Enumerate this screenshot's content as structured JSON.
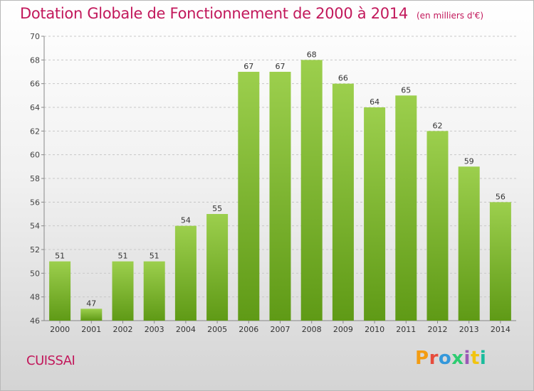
{
  "header": {
    "title": "Dotation Globale de Fonctionnement de 2000 à 2014",
    "unit": "(en milliers d'€)"
  },
  "footer": {
    "commune": "CUISSAI",
    "brand": "Proxiti",
    "brand_colors": [
      "#f39c12",
      "#e74c3c",
      "#3498db",
      "#2ecc71",
      "#9b59b6",
      "#f1c40f",
      "#1abc9c"
    ]
  },
  "chart_data": {
    "type": "bar",
    "categories": [
      "2000",
      "2001",
      "2002",
      "2003",
      "2004",
      "2005",
      "2006",
      "2007",
      "2008",
      "2009",
      "2010",
      "2011",
      "2012",
      "2013",
      "2014"
    ],
    "values": [
      51,
      47,
      51,
      51,
      54,
      55,
      67,
      67,
      68,
      66,
      64,
      65,
      62,
      59,
      56
    ],
    "ylim": [
      46,
      70
    ],
    "yticks": [
      46,
      48,
      50,
      52,
      54,
      56,
      58,
      60,
      62,
      64,
      66,
      68,
      70
    ],
    "grid": true,
    "bar_color_top": "#9ccf4d",
    "bar_color_bottom": "#5f9a16"
  }
}
